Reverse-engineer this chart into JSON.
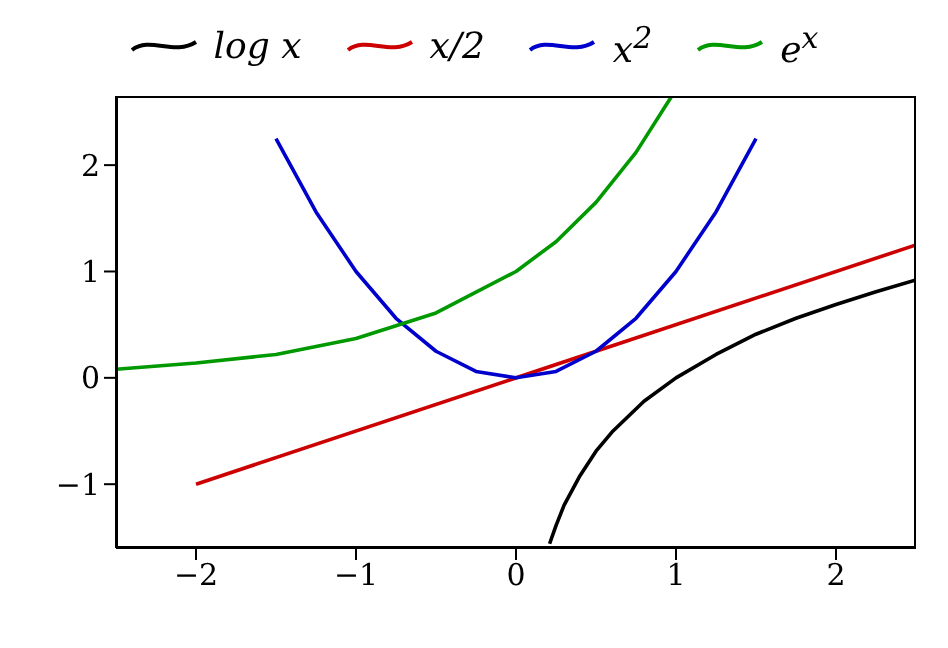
{
  "chart_data": {
    "type": "line",
    "legend": "top",
    "xlim": [
      -2.5,
      2.5
    ],
    "ylim": [
      -1.6,
      2.65
    ],
    "xticks": [
      {
        "value": -2,
        "label": "−2"
      },
      {
        "value": -1,
        "label": "−1"
      },
      0,
      1,
      2
    ],
    "yticks": [
      {
        "value": -1,
        "label": "−1"
      },
      0,
      1,
      2
    ],
    "series": [
      {
        "name": "log x",
        "color": "#000000",
        "x": [
          0.21,
          0.25,
          0.3,
          0.4,
          0.5,
          0.6,
          0.8,
          1,
          1.25,
          1.5,
          1.75,
          2,
          2.25,
          2.5
        ],
        "values": [
          -1.56,
          -1.39,
          -1.2,
          -0.92,
          -0.69,
          -0.51,
          -0.22,
          0,
          0.22,
          0.41,
          0.56,
          0.69,
          0.81,
          0.92
        ]
      },
      {
        "name": "x/2",
        "color": "#cc0000",
        "x": [
          -2,
          2.5
        ],
        "values": [
          -1,
          1.25
        ]
      },
      {
        "name": "x$^{2}$",
        "color": "#0000cc",
        "x": [
          -1.5,
          -1.25,
          -1,
          -0.75,
          -0.5,
          -0.25,
          0,
          0.25,
          0.5,
          0.75,
          1,
          1.25,
          1.5
        ],
        "values": [
          2.25,
          1.56,
          1,
          0.56,
          0.25,
          0.06,
          0,
          0.06,
          0.25,
          0.56,
          1,
          1.56,
          2.25
        ]
      },
      {
        "name": "e$^{x}$",
        "color": "#009900",
        "x": [
          -2.5,
          -2,
          -1.5,
          -1,
          -0.5,
          0,
          0.25,
          0.5,
          0.75,
          0.97
        ],
        "values": [
          0.08,
          0.14,
          0.22,
          0.37,
          0.61,
          1,
          1.28,
          1.65,
          2.12,
          2.64
        ]
      }
    ]
  }
}
